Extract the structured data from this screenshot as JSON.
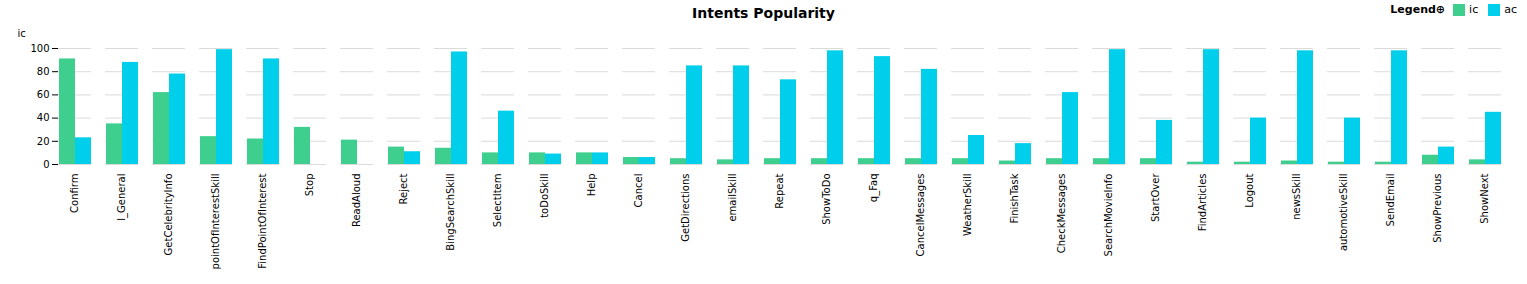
{
  "chart_data": {
    "type": "bar",
    "title": "Intents Popularity",
    "ylabel": "ic",
    "categories": [
      "Confirm",
      "l_General",
      "GetCelebrityInfo",
      "pointOfInterestSkill",
      "FindPointOfInterest",
      "Stop",
      "ReadAloud",
      "Reject",
      "BingSearchSkill",
      "SelectItem",
      "toDoSkill",
      "Help",
      "Cancel",
      "GetDirections",
      "emailSkill",
      "Repeat",
      "ShowToDo",
      "q_Faq",
      "CancelMessages",
      "WeatherSkill",
      "FinishTask",
      "CheckMessages",
      "SearchMovieInfo",
      "StartOver",
      "FindArticles",
      "Logout",
      "newsSkill",
      "automotiveSkill",
      "SendEmail",
      "ShowPrevious",
      "ShowNext"
    ],
    "series": [
      {
        "name": "ic",
        "color": "#3ecf8e",
        "values": [
          91,
          35,
          62,
          24,
          22,
          32,
          21,
          15,
          14,
          10,
          10,
          10,
          6,
          5,
          4,
          5,
          5,
          5,
          5,
          5,
          3,
          5,
          5,
          5,
          2,
          2,
          3,
          2,
          2,
          8,
          4
        ]
      },
      {
        "name": "ac",
        "color": "#00cfec",
        "values": [
          23,
          88,
          78,
          99,
          91,
          0,
          0,
          11,
          97,
          46,
          9,
          10,
          6,
          85,
          85,
          73,
          98,
          93,
          82,
          25,
          18,
          62,
          99,
          38,
          99,
          40,
          98,
          40,
          98,
          15,
          45
        ]
      }
    ],
    "ylim": [
      0,
      100
    ],
    "yticks": [
      0,
      20,
      40,
      60,
      80,
      100
    ],
    "grid": true,
    "legend": "upper right",
    "legend_title": "Legend⊕"
  }
}
